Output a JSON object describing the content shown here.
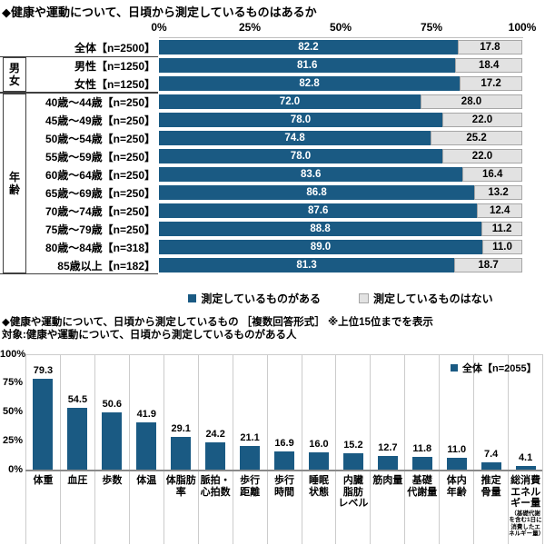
{
  "colors": {
    "accent": "#1A5A83",
    "gray_fill": "#E2E2E2",
    "gray_border": "#A6A6A6",
    "grid": "#CCCCCC",
    "axis": "#8A8A8A"
  },
  "chart_data": [
    {
      "type": "bar",
      "orientation": "horizontal",
      "stacked": true,
      "title": "◆健康や運動について、日頃から測定しているものはあるか",
      "x_ticks": [
        "0%",
        "25%",
        "50%",
        "75%",
        "100%"
      ],
      "xlim": [
        0,
        100
      ],
      "series_labels": [
        "測定しているものがある",
        "測定しているものはない"
      ],
      "groups": [
        {
          "label": "",
          "rows": [
            {
              "label": "全体【n=2500】",
              "values": [
                82.2,
                17.8
              ]
            }
          ]
        },
        {
          "label": "男女",
          "rows": [
            {
              "label": "男性【n=1250】",
              "values": [
                81.6,
                18.4
              ]
            },
            {
              "label": "女性【n=1250】",
              "values": [
                82.8,
                17.2
              ]
            }
          ]
        },
        {
          "label": "年齢",
          "rows": [
            {
              "label": "40歳～44歳【n=250】",
              "values": [
                72.0,
                28.0
              ]
            },
            {
              "label": "45歳～49歳【n=250】",
              "values": [
                78.0,
                22.0
              ]
            },
            {
              "label": "50歳～54歳【n=250】",
              "values": [
                74.8,
                25.2
              ]
            },
            {
              "label": "55歳～59歳【n=250】",
              "values": [
                78.0,
                22.0
              ]
            },
            {
              "label": "60歳～64歳【n=250】",
              "values": [
                83.6,
                16.4
              ]
            },
            {
              "label": "65歳～69歳【n=250】",
              "values": [
                86.8,
                13.2
              ]
            },
            {
              "label": "70歳～74歳【n=250】",
              "values": [
                87.6,
                12.4
              ]
            },
            {
              "label": "75歳～79歳【n=250】",
              "values": [
                88.8,
                11.2
              ]
            },
            {
              "label": "80歳～84歳【n=318】",
              "values": [
                89.0,
                11.0
              ]
            },
            {
              "label": "85歳以上【n=182】",
              "values": [
                81.3,
                18.7
              ]
            }
          ]
        }
      ]
    },
    {
      "type": "bar",
      "orientation": "vertical",
      "title": "◆健康や運動について、日頃から測定しているもの ［複数回答形式］ ※上位15位までを表示",
      "subtitle": "対象:健康や運動について、日頃から測定しているものがある人",
      "legend": "全体【n=2055】",
      "y_ticks": [
        "100%",
        "75%",
        "50%",
        "25%",
        "0%"
      ],
      "ylim": [
        0,
        100
      ],
      "categories": [
        {
          "lines": [
            "体重"
          ]
        },
        {
          "lines": [
            "血圧"
          ]
        },
        {
          "lines": [
            "歩数"
          ]
        },
        {
          "lines": [
            "体温"
          ]
        },
        {
          "lines": [
            "体脂肪",
            "率"
          ]
        },
        {
          "lines": [
            "脈拍・",
            "心拍数"
          ]
        },
        {
          "lines": [
            "歩行",
            "距離"
          ]
        },
        {
          "lines": [
            "歩行",
            "時間"
          ]
        },
        {
          "lines": [
            "睡眠",
            "状態"
          ]
        },
        {
          "lines": [
            "内臓",
            "脂肪",
            "レベル"
          ]
        },
        {
          "lines": [
            "筋肉量"
          ]
        },
        {
          "lines": [
            "基礎",
            "代謝量"
          ]
        },
        {
          "lines": [
            "体内",
            "年齢"
          ]
        },
        {
          "lines": [
            "推定",
            "骨量"
          ]
        },
        {
          "lines": [
            "総消費",
            "エネル",
            "ギー量"
          ],
          "note": "（基礎代謝を含む1日に消費したエネルギー量）"
        }
      ],
      "values": [
        79.3,
        54.5,
        50.6,
        41.9,
        29.1,
        24.2,
        21.1,
        16.9,
        16.0,
        15.2,
        12.7,
        11.8,
        11.0,
        7.4,
        4.1
      ]
    }
  ]
}
